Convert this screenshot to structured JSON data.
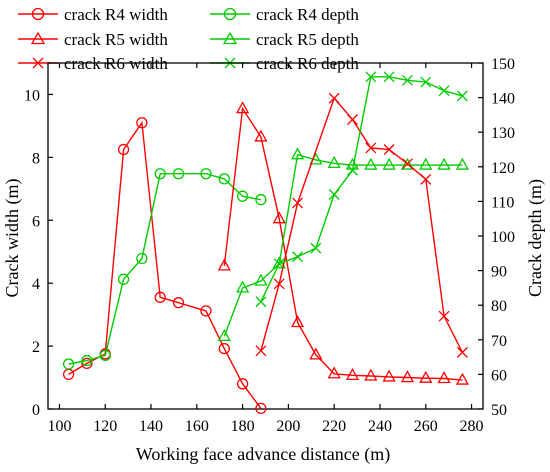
{
  "chart_data": {
    "type": "line",
    "xlabel": "Working face advance distance (m)",
    "ylabel_left": "Crack width (m)",
    "ylabel_right": "Crack depth (m)",
    "xlim": [
      95,
      285
    ],
    "ylim_left": [
      0,
      11
    ],
    "ylim_right": [
      50,
      150
    ],
    "x_ticks": [
      100,
      120,
      140,
      160,
      180,
      200,
      220,
      240,
      260,
      280
    ],
    "y_left_ticks": [
      0,
      2,
      4,
      6,
      8,
      10
    ],
    "y_right_ticks": [
      50,
      60,
      70,
      80,
      90,
      100,
      110,
      120,
      130,
      140,
      150
    ],
    "colors": {
      "width": "#ff0000",
      "depth": "#00cc00"
    },
    "legend_position": "top",
    "series": [
      {
        "name": "crack R4 width",
        "axis": "left",
        "marker": "circle",
        "x": [
          104,
          112,
          120,
          128,
          136,
          144,
          152,
          164,
          172,
          180,
          188
        ],
        "y": [
          1.1,
          1.45,
          1.75,
          8.25,
          9.1,
          3.55,
          3.38,
          3.12,
          1.92,
          0.8,
          0.02
        ]
      },
      {
        "name": "crack R4 depth",
        "axis": "right",
        "marker": "circle",
        "x": [
          104,
          112,
          120,
          128,
          136,
          144,
          152,
          164,
          172,
          180,
          188
        ],
        "y": [
          63,
          64,
          65.5,
          87.5,
          93.5,
          118,
          118,
          118,
          116.5,
          111.5,
          110.5
        ]
      },
      {
        "name": "crack R5 width",
        "axis": "left",
        "marker": "triangle",
        "x": [
          172,
          180,
          188,
          196,
          204,
          212,
          220,
          228,
          236,
          244,
          252,
          260,
          268,
          276
        ],
        "y": [
          4.55,
          9.55,
          8.65,
          6.05,
          2.75,
          1.72,
          1.12,
          1.07,
          1.05,
          1.02,
          1.0,
          0.98,
          0.97,
          0.92
        ]
      },
      {
        "name": "crack R5 depth",
        "axis": "right",
        "marker": "triangle",
        "x": [
          172,
          180,
          188,
          196,
          204,
          212,
          220,
          228,
          236,
          244,
          252,
          260,
          268,
          276
        ],
        "y": [
          71,
          85,
          87,
          92,
          123.5,
          122,
          121,
          120.5,
          120.5,
          120.5,
          120.5,
          120.5,
          120.5,
          120.5
        ]
      },
      {
        "name": "crack R6 width",
        "axis": "left",
        "marker": "x",
        "x": [
          188,
          196,
          204,
          220,
          228,
          236,
          244,
          252,
          260,
          268,
          276
        ],
        "y": [
          1.85,
          3.98,
          6.55,
          9.88,
          9.2,
          8.3,
          8.25,
          7.8,
          7.3,
          2.95,
          1.8
        ]
      },
      {
        "name": "crack R6 depth",
        "axis": "right",
        "marker": "x",
        "x": [
          188,
          196,
          204,
          212,
          220,
          228,
          236,
          244,
          252,
          260,
          268,
          276
        ],
        "y": [
          81,
          92,
          94,
          96.5,
          112,
          119,
          146,
          146,
          145,
          144.5,
          142,
          140.5
        ]
      }
    ]
  }
}
